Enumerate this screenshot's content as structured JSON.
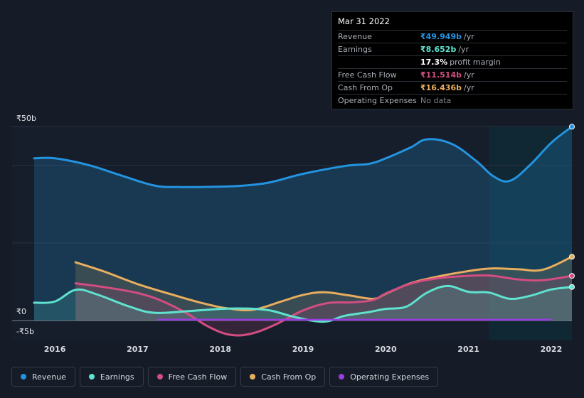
{
  "chart_data": {
    "type": "area",
    "x_range": [
      2015.6,
      2022.25
    ],
    "y_range": [
      -5,
      50
    ],
    "y_tick_labels": [
      {
        "value": 50,
        "label": "₹50b"
      },
      {
        "value": 0,
        "label": "₹0"
      },
      {
        "value": -5,
        "label": "-₹5b"
      }
    ],
    "x_ticks": [
      {
        "value": 2016,
        "label": "2016"
      },
      {
        "value": 2017,
        "label": "2017"
      },
      {
        "value": 2018,
        "label": "2018"
      },
      {
        "value": 2019,
        "label": "2019"
      },
      {
        "value": 2020,
        "label": "2020"
      },
      {
        "value": 2021,
        "label": "2021"
      },
      {
        "value": 2022,
        "label": "2022"
      }
    ],
    "highlight_start": 2021.25,
    "series": [
      {
        "name": "Revenue",
        "color": "#2394df",
        "points": [
          [
            2015.75,
            41.8
          ],
          [
            2016.0,
            41.8
          ],
          [
            2016.4,
            40.1
          ],
          [
            2016.8,
            37.4
          ],
          [
            2017.2,
            34.8
          ],
          [
            2017.5,
            34.4
          ],
          [
            2018.0,
            34.5
          ],
          [
            2018.3,
            34.8
          ],
          [
            2018.6,
            35.6
          ],
          [
            2019.0,
            37.8
          ],
          [
            2019.5,
            39.8
          ],
          [
            2019.8,
            40.4
          ],
          [
            2020.0,
            41.8
          ],
          [
            2020.3,
            44.6
          ],
          [
            2020.5,
            46.7
          ],
          [
            2020.8,
            45.5
          ],
          [
            2021.1,
            41.0
          ],
          [
            2021.3,
            37.2
          ],
          [
            2021.5,
            36.0
          ],
          [
            2021.75,
            40.2
          ],
          [
            2022.0,
            45.8
          ],
          [
            2022.25,
            49.949
          ]
        ]
      },
      {
        "name": "Earnings",
        "color": "#5fe2cf",
        "points": [
          [
            2015.75,
            4.6
          ],
          [
            2016.0,
            4.9
          ],
          [
            2016.25,
            7.9
          ],
          [
            2016.5,
            6.8
          ],
          [
            2016.9,
            3.6
          ],
          [
            2017.2,
            2.0
          ],
          [
            2017.6,
            2.4
          ],
          [
            2018.0,
            3.0
          ],
          [
            2018.3,
            3.1
          ],
          [
            2018.6,
            2.6
          ],
          [
            2018.9,
            0.9
          ],
          [
            2019.25,
            -0.3
          ],
          [
            2019.5,
            1.2
          ],
          [
            2019.8,
            2.2
          ],
          [
            2020.0,
            3.0
          ],
          [
            2020.25,
            3.6
          ],
          [
            2020.5,
            7.2
          ],
          [
            2020.75,
            8.9
          ],
          [
            2021.0,
            7.4
          ],
          [
            2021.25,
            7.2
          ],
          [
            2021.5,
            5.6
          ],
          [
            2021.75,
            6.4
          ],
          [
            2022.0,
            8.0
          ],
          [
            2022.25,
            8.652
          ]
        ]
      },
      {
        "name": "Free Cash Flow",
        "color": "#d34d82",
        "points": [
          [
            2016.25,
            9.6
          ],
          [
            2016.6,
            8.6
          ],
          [
            2017.0,
            7.1
          ],
          [
            2017.3,
            5.0
          ],
          [
            2017.6,
            1.8
          ],
          [
            2017.85,
            -1.5
          ],
          [
            2018.1,
            -3.6
          ],
          [
            2018.35,
            -3.5
          ],
          [
            2018.65,
            -1.2
          ],
          [
            2019.0,
            2.6
          ],
          [
            2019.3,
            4.5
          ],
          [
            2019.6,
            4.7
          ],
          [
            2019.85,
            5.3
          ],
          [
            2020.0,
            7.0
          ],
          [
            2020.3,
            9.5
          ],
          [
            2020.6,
            10.8
          ],
          [
            2020.9,
            11.4
          ],
          [
            2021.25,
            11.6
          ],
          [
            2021.6,
            10.6
          ],
          [
            2021.9,
            10.4
          ],
          [
            2022.25,
            11.514
          ]
        ]
      },
      {
        "name": "Cash From Op",
        "color": "#e8ae5e",
        "points": [
          [
            2016.25,
            15.0
          ],
          [
            2016.6,
            12.6
          ],
          [
            2017.0,
            9.4
          ],
          [
            2017.4,
            6.8
          ],
          [
            2017.8,
            4.4
          ],
          [
            2018.1,
            3.1
          ],
          [
            2018.4,
            2.8
          ],
          [
            2018.75,
            5.0
          ],
          [
            2019.0,
            6.6
          ],
          [
            2019.25,
            7.3
          ],
          [
            2019.55,
            6.5
          ],
          [
            2019.85,
            5.6
          ],
          [
            2020.0,
            6.9
          ],
          [
            2020.3,
            9.6
          ],
          [
            2020.6,
            11.2
          ],
          [
            2020.9,
            12.4
          ],
          [
            2021.25,
            13.4
          ],
          [
            2021.6,
            13.2
          ],
          [
            2021.9,
            13.1
          ],
          [
            2022.25,
            16.436
          ]
        ]
      },
      {
        "name": "Operating Expenses",
        "color": "#9a3de0",
        "points": [
          [
            2017.25,
            0.22
          ],
          [
            2018.0,
            0.22
          ],
          [
            2019.0,
            0.2
          ],
          [
            2020.0,
            0.2
          ],
          [
            2021.0,
            0.2
          ],
          [
            2022.0,
            0.2
          ]
        ]
      }
    ]
  },
  "tooltip": {
    "date": "Mar 31 2022",
    "rows": [
      {
        "label": "Revenue",
        "value": "₹49.949b",
        "unit": "/yr",
        "color": "#2394df"
      },
      {
        "label": "Earnings",
        "value": "₹8.652b",
        "unit": "/yr",
        "color": "#5fe2cf"
      },
      {
        "label": "",
        "value": "17.3%",
        "unit": "profit margin",
        "color": "#ffffff"
      },
      {
        "label": "Free Cash Flow",
        "value": "₹11.514b",
        "unit": "/yr",
        "color": "#d34d82"
      },
      {
        "label": "Cash From Op",
        "value": "₹16.436b",
        "unit": "/yr",
        "color": "#e8ae5e"
      },
      {
        "label": "Operating Expenses",
        "value": "No data",
        "unit": "",
        "color": "#7c818a"
      }
    ]
  },
  "legend": [
    {
      "label": "Revenue",
      "color": "#2394df"
    },
    {
      "label": "Earnings",
      "color": "#5fe2cf"
    },
    {
      "label": "Free Cash Flow",
      "color": "#d34d82"
    },
    {
      "label": "Cash From Op",
      "color": "#e8ae5e"
    },
    {
      "label": "Operating Expenses",
      "color": "#9a3de0"
    }
  ]
}
